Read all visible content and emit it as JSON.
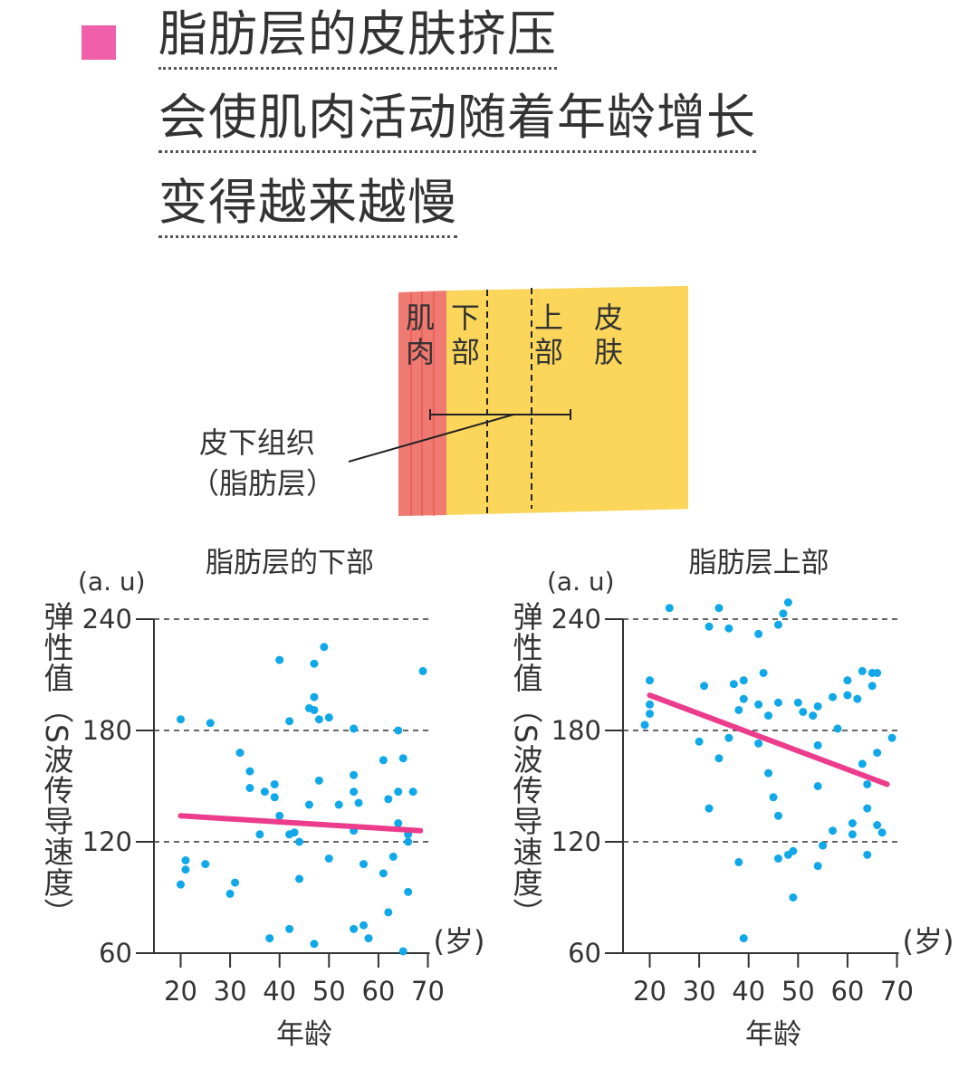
{
  "header": {
    "bullet_color": "#f060aa",
    "lines": [
      "脂肪层的皮肤挤压",
      "会使肌肉活动随着年龄增长",
      "变得越来越慢"
    ]
  },
  "diagram": {
    "muscle_label": [
      "肌",
      "肉"
    ],
    "lower_label": [
      "下",
      "部"
    ],
    "upper_label": [
      "上",
      "部"
    ],
    "skin_label": [
      "皮",
      "肤"
    ],
    "callout": [
      "皮下组织",
      "（脂肪层）"
    ],
    "colors": {
      "muscle": "#ef7a72",
      "fat": "#fbd65a",
      "skin": "#f4857e",
      "epidermis": "#f8b3ae"
    }
  },
  "chart_data": [
    {
      "type": "scatter",
      "title": "脂肪层的下部",
      "unit": "(a. u)",
      "ylabel": "弹性值（S波传导速度）",
      "xlabel": "年龄",
      "xunit": "(岁)",
      "xticks": [
        20,
        30,
        40,
        50,
        60,
        70
      ],
      "yticks": [
        60,
        120,
        180,
        240
      ],
      "xlim": [
        15,
        70
      ],
      "ylim": [
        60,
        240
      ],
      "grid": "dashed horizontal at 120, 180, 240",
      "point_color": "#10a8e8",
      "trend_color": "#ec3c8c",
      "trend": [
        [
          20,
          134
        ],
        [
          68.5,
          126
        ]
      ],
      "points": [
        [
          20,
          186
        ],
        [
          26,
          184
        ],
        [
          40,
          218
        ],
        [
          47,
          216
        ],
        [
          49,
          225
        ],
        [
          47,
          198
        ],
        [
          46,
          192
        ],
        [
          47,
          191
        ],
        [
          48,
          186
        ],
        [
          50,
          187
        ],
        [
          42,
          185
        ],
        [
          55,
          181
        ],
        [
          64,
          180
        ],
        [
          69,
          212
        ],
        [
          32,
          168
        ],
        [
          34,
          158
        ],
        [
          34,
          149
        ],
        [
          37,
          147
        ],
        [
          39,
          151
        ],
        [
          39,
          144
        ],
        [
          40,
          134
        ],
        [
          36,
          124
        ],
        [
          42,
          124
        ],
        [
          43,
          125
        ],
        [
          44,
          120
        ],
        [
          48,
          153
        ],
        [
          46,
          140
        ],
        [
          52,
          140
        ],
        [
          55,
          156
        ],
        [
          55,
          147
        ],
        [
          56,
          141
        ],
        [
          55,
          126
        ],
        [
          61,
          164
        ],
        [
          65,
          165
        ],
        [
          62,
          143
        ],
        [
          64,
          147
        ],
        [
          67,
          147
        ],
        [
          64,
          130
        ],
        [
          66,
          124
        ],
        [
          66,
          120
        ],
        [
          21,
          110
        ],
        [
          21,
          105
        ],
        [
          20,
          97
        ],
        [
          25,
          108
        ],
        [
          31,
          98
        ],
        [
          30,
          92
        ],
        [
          50,
          111
        ],
        [
          44,
          100
        ],
        [
          57,
          108
        ],
        [
          63,
          112
        ],
        [
          61,
          103
        ],
        [
          66,
          93
        ],
        [
          62,
          82
        ],
        [
          42,
          73
        ],
        [
          38,
          68
        ],
        [
          47,
          65
        ],
        [
          55,
          73
        ],
        [
          57,
          75
        ],
        [
          58,
          68
        ],
        [
          65,
          61
        ]
      ]
    },
    {
      "type": "scatter",
      "title": "脂肪层上部",
      "unit": "(a. u)",
      "ylabel": "弹性值（S波传导速度）",
      "xlabel": "年龄",
      "xunit": "(岁)",
      "xticks": [
        20,
        30,
        40,
        50,
        60,
        70
      ],
      "yticks": [
        60,
        120,
        180,
        240
      ],
      "xlim": [
        15,
        70
      ],
      "ylim": [
        60,
        240
      ],
      "grid": "dashed horizontal at 120, 180, 240",
      "point_color": "#10a8e8",
      "trend_color": "#ec3c8c",
      "trend": [
        [
          20,
          199
        ],
        [
          68,
          151
        ]
      ],
      "points": [
        [
          24,
          246
        ],
        [
          34,
          246
        ],
        [
          32,
          236
        ],
        [
          36,
          235
        ],
        [
          42,
          232
        ],
        [
          46,
          237
        ],
        [
          47,
          243
        ],
        [
          48,
          249
        ],
        [
          20,
          207
        ],
        [
          20,
          194
        ],
        [
          20,
          189
        ],
        [
          19,
          183
        ],
        [
          31,
          204
        ],
        [
          37,
          205
        ],
        [
          39,
          207
        ],
        [
          43,
          211
        ],
        [
          39,
          197
        ],
        [
          38,
          191
        ],
        [
          42,
          194
        ],
        [
          44,
          188
        ],
        [
          46,
          195
        ],
        [
          50,
          195
        ],
        [
          51,
          190
        ],
        [
          53,
          188
        ],
        [
          54,
          193
        ],
        [
          57,
          198
        ],
        [
          60,
          207
        ],
        [
          60,
          199
        ],
        [
          62,
          197
        ],
        [
          63,
          212
        ],
        [
          65,
          211
        ],
        [
          66,
          211
        ],
        [
          65,
          204
        ],
        [
          30,
          174
        ],
        [
          36,
          176
        ],
        [
          42,
          173
        ],
        [
          34,
          165
        ],
        [
          44,
          157
        ],
        [
          54,
          172
        ],
        [
          58,
          181
        ],
        [
          69,
          176
        ],
        [
          66,
          168
        ],
        [
          63,
          162
        ],
        [
          64,
          151
        ],
        [
          54,
          150
        ],
        [
          32,
          138
        ],
        [
          45,
          144
        ],
        [
          46,
          134
        ],
        [
          64,
          138
        ],
        [
          57,
          126
        ],
        [
          61,
          130
        ],
        [
          61,
          124
        ],
        [
          66,
          129
        ],
        [
          67,
          125
        ],
        [
          55,
          118
        ],
        [
          54,
          107
        ],
        [
          64,
          113
        ],
        [
          38,
          109
        ],
        [
          46,
          111
        ],
        [
          48,
          113
        ],
        [
          49,
          115
        ],
        [
          49,
          90
        ],
        [
          39,
          68
        ]
      ]
    }
  ]
}
